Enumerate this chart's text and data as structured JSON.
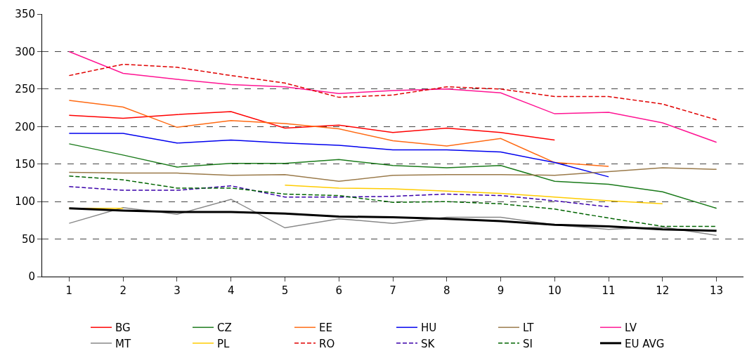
{
  "chart_data": {
    "type": "line",
    "x": [
      1,
      2,
      3,
      4,
      5,
      6,
      7,
      8,
      9,
      10,
      11,
      12,
      13
    ],
    "xlim": [
      0.5,
      13.5
    ],
    "xticks": [
      1,
      2,
      3,
      4,
      5,
      6,
      7,
      8,
      9,
      10,
      11,
      12,
      13
    ],
    "ylim": [
      0,
      350
    ],
    "yticks": [
      0,
      50,
      100,
      150,
      200,
      250,
      300,
      350
    ],
    "grid": "y",
    "legend": "bottom",
    "marker": "none",
    "series": [
      {
        "name": "BG",
        "color": "#ff0000",
        "line_style": "solid",
        "values": [
          215,
          211,
          216,
          220,
          198,
          202,
          192,
          198,
          192,
          182,
          null,
          null,
          null
        ]
      },
      {
        "name": "CZ",
        "color": "#1a7a1a",
        "line_style": "solid",
        "values": [
          177,
          162,
          146,
          151,
          151,
          156,
          148,
          145,
          148,
          127,
          123,
          113,
          91
        ]
      },
      {
        "name": "EE",
        "color": "#ff6a13",
        "line_style": "solid",
        "values": [
          235,
          226,
          199,
          208,
          204,
          197,
          181,
          174,
          184,
          152,
          147,
          null,
          null
        ]
      },
      {
        "name": "HU",
        "color": "#0000ee",
        "line_style": "solid",
        "values": [
          191,
          191,
          178,
          182,
          178,
          175,
          169,
          169,
          166,
          152,
          133,
          null,
          null
        ]
      },
      {
        "name": "LT",
        "color": "#9a7a4a",
        "line_style": "solid",
        "values": [
          139,
          138,
          138,
          135,
          136,
          127,
          135,
          136,
          136,
          135,
          140,
          145,
          143
        ]
      },
      {
        "name": "LV",
        "color": "#ff1493",
        "line_style": "solid",
        "values": [
          300,
          271,
          263,
          256,
          253,
          244,
          248,
          250,
          245,
          217,
          219,
          205,
          179
        ]
      },
      {
        "name": "MT",
        "color": "#888888",
        "line_style": "solid",
        "values": [
          71,
          92,
          83,
          103,
          65,
          77,
          71,
          79,
          79,
          69,
          63,
          66,
          55
        ]
      },
      {
        "name": "PL",
        "color": "#ffcc00",
        "line_style": "solid",
        "values": [
          91,
          91,
          null,
          null,
          122,
          118,
          117,
          114,
          111,
          106,
          101,
          97,
          null
        ]
      },
      {
        "name": "RO",
        "color": "#e00000",
        "line_style": "dashed",
        "values": [
          268,
          283,
          279,
          268,
          258,
          239,
          242,
          253,
          250,
          240,
          240,
          230,
          209
        ]
      },
      {
        "name": "SK",
        "color": "#3a00aa",
        "line_style": "dashed",
        "values": [
          120,
          115,
          115,
          121,
          106,
          106,
          107,
          110,
          108,
          101,
          93,
          null,
          null
        ]
      },
      {
        "name": "SI",
        "color": "#006400",
        "line_style": "dashed",
        "values": [
          134,
          129,
          118,
          118,
          110,
          108,
          99,
          100,
          97,
          90,
          78,
          67,
          67
        ]
      },
      {
        "name": "EU AVG",
        "color": "#000000",
        "line_style": "solid",
        "values": [
          91,
          88,
          86,
          86,
          84,
          80,
          79,
          77,
          74,
          69,
          67,
          63,
          61
        ]
      }
    ]
  }
}
